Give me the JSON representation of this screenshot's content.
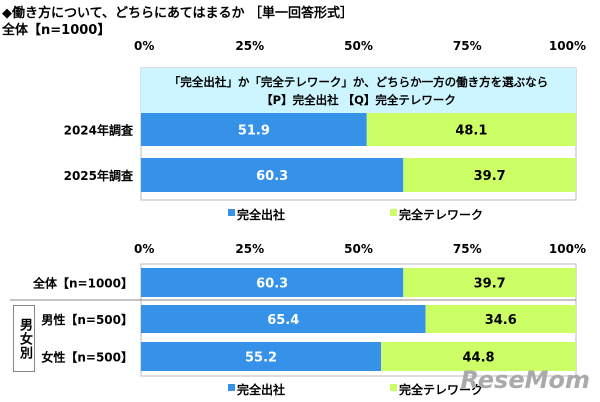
{
  "title": "◆働き方について、どちらにあてはまるか ［単一回答形式］",
  "subtitle": "全体【n=1000】",
  "colors": {
    "office": "#3592e8",
    "telework": "#ccff66",
    "header_bg": "#ccf5ff"
  },
  "watermark": "ReseMom",
  "chart_data": [
    {
      "type": "bar",
      "orientation": "horizontal",
      "stacked": "100%",
      "header_lines": [
        "「完全出社」か「完全テレワーク」か、どちらか一方の働き方を選ぶなら",
        "【P】完全出社 【Q】完全テレワーク"
      ],
      "x_ticks": [
        "0%",
        "25%",
        "50%",
        "75%",
        "100%"
      ],
      "xlim": [
        0,
        100
      ],
      "categories": [
        "2024年調査",
        "2025年調査"
      ],
      "series": [
        {
          "name": "完全出社",
          "values": [
            51.9,
            60.3
          ]
        },
        {
          "name": "完全テレワーク",
          "values": [
            48.1,
            39.7
          ]
        }
      ],
      "legend": "bottom"
    },
    {
      "type": "bar",
      "orientation": "horizontal",
      "stacked": "100%",
      "x_ticks": [
        "0%",
        "25%",
        "50%",
        "75%",
        "100%"
      ],
      "xlim": [
        0,
        100
      ],
      "categories": [
        "全体【n=1000】",
        "男性【n=500】",
        "女性【n=500】"
      ],
      "group_label": "男女別",
      "series": [
        {
          "name": "完全出社",
          "values": [
            60.3,
            65.4,
            55.2
          ]
        },
        {
          "name": "完全テレワーク",
          "values": [
            39.7,
            34.6,
            44.8
          ]
        }
      ],
      "legend": "bottom"
    }
  ]
}
